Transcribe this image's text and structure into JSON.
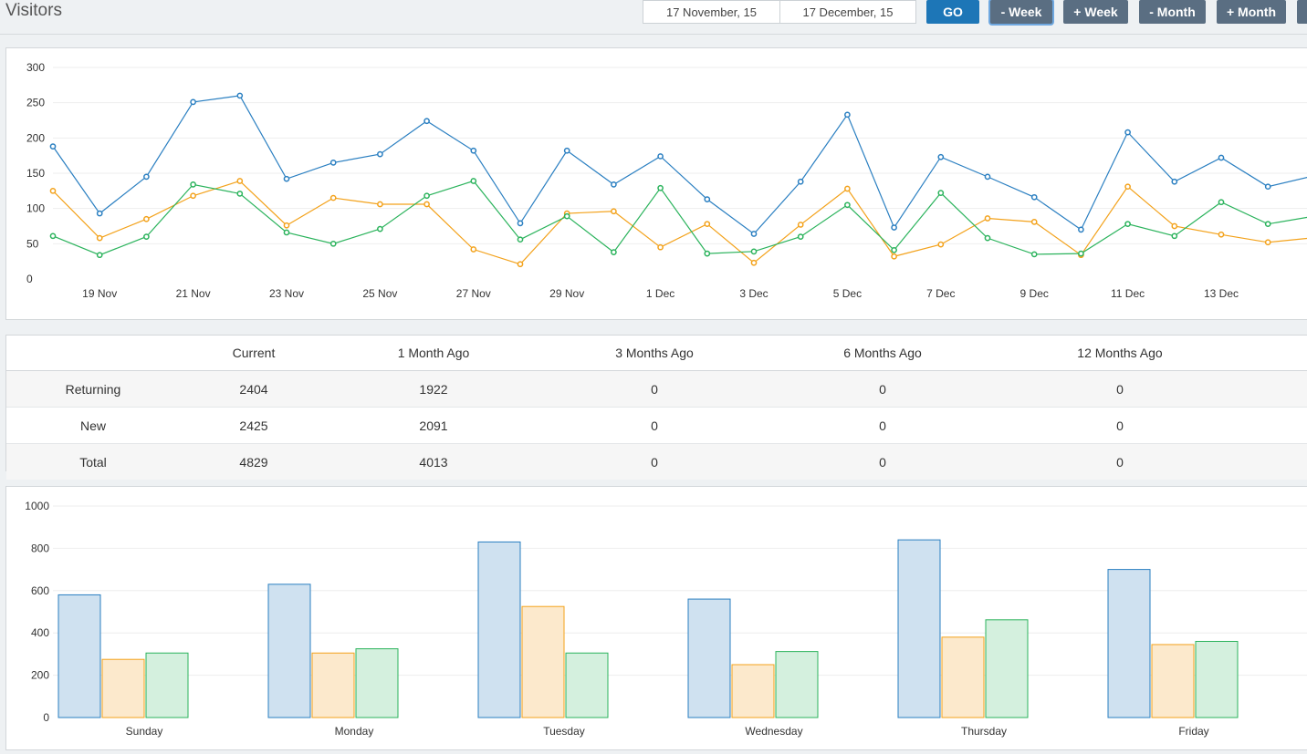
{
  "header": {
    "title": "Visitors",
    "start_date": "17 November, 15",
    "end_date": "17 December, 15",
    "go_label": "GO",
    "minus_week_label": "- Week",
    "plus_week_label": "+ Week",
    "minus_month_label": "- Month",
    "plus_month_label": "+ Month"
  },
  "colors": {
    "blue": "#2a7fc1",
    "orange": "#f3a21b",
    "green": "#2bb35c"
  },
  "chart_data": [
    {
      "type": "line",
      "ylim": [
        0,
        300
      ],
      "y_ticks": [
        "300",
        "250",
        "200",
        "150",
        "100",
        "50",
        "0"
      ],
      "x": [
        "18 Nov",
        "19 Nov",
        "20 Nov",
        "21 Nov",
        "22 Nov",
        "23 Nov",
        "24 Nov",
        "25 Nov",
        "26 Nov",
        "27 Nov",
        "28 Nov",
        "29 Nov",
        "30 Nov",
        "1 Dec",
        "2 Dec",
        "3 Dec",
        "4 Dec",
        "5 Dec",
        "6 Dec",
        "7 Dec",
        "8 Dec",
        "9 Dec",
        "10 Dec",
        "11 Dec",
        "12 Dec",
        "13 Dec",
        "14 Dec"
      ],
      "x_tick_labels": [
        "19 Nov",
        "21 Nov",
        "23 Nov",
        "25 Nov",
        "27 Nov",
        "29 Nov",
        "1 Dec",
        "3 Dec",
        "5 Dec",
        "7 Dec",
        "9 Dec",
        "11 Dec",
        "13 Dec"
      ],
      "series": [
        {
          "color": "#2a7fc1",
          "values": [
            188,
            93,
            145,
            251,
            260,
            142,
            165,
            177,
            224,
            182,
            79,
            182,
            134,
            174,
            113,
            64,
            138,
            233,
            73,
            173,
            145,
            116,
            70,
            208,
            138,
            172,
            131
          ]
        },
        {
          "color": "#f3a21b",
          "values": [
            125,
            58,
            85,
            118,
            139,
            76,
            115,
            106,
            106,
            42,
            21,
            93,
            96,
            45,
            78,
            23,
            77,
            128,
            32,
            49,
            86,
            81,
            34,
            131,
            75,
            63,
            52
          ]
        },
        {
          "color": "#2bb35c",
          "values": [
            61,
            34,
            60,
            134,
            121,
            66,
            50,
            71,
            118,
            139,
            56,
            89,
            38,
            129,
            36,
            39,
            60,
            105,
            41,
            122,
            58,
            35,
            36,
            78,
            61,
            109,
            78
          ]
        }
      ]
    },
    {
      "type": "bar",
      "ylim": [
        0,
        1000
      ],
      "y_ticks": [
        "1000",
        "800",
        "600",
        "400",
        "200",
        "0"
      ],
      "categories": [
        "Sunday",
        "Monday",
        "Tuesday",
        "Wednesday",
        "Thursday",
        "Friday"
      ],
      "series": [
        {
          "color": "#2a7fc1",
          "values": [
            580,
            630,
            830,
            560,
            840,
            700
          ]
        },
        {
          "color": "#f3a21b",
          "values": [
            275,
            305,
            525,
            250,
            380,
            345
          ]
        },
        {
          "color": "#2bb35c",
          "values": [
            305,
            325,
            305,
            312,
            462,
            360
          ]
        }
      ]
    }
  ],
  "table": {
    "headers": [
      "",
      "Current",
      "1 Month Ago",
      "3 Months Ago",
      "6 Months Ago",
      "12 Months Ago"
    ],
    "rows": [
      [
        "Returning",
        "2404",
        "1922",
        "0",
        "0",
        "0"
      ],
      [
        "New",
        "2425",
        "2091",
        "0",
        "0",
        "0"
      ],
      [
        "Total",
        "4829",
        "4013",
        "0",
        "0",
        "0"
      ]
    ]
  }
}
